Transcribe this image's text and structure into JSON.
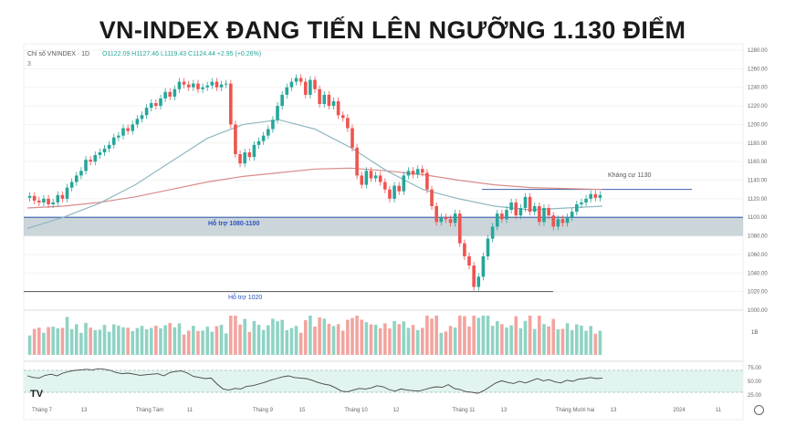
{
  "title": "VN-INDEX ĐANG TIẾN LÊN NGƯỠNG 1.130 ĐIỂM",
  "header": {
    "symbol": "Chỉ số VNINDEX · 1D",
    "ohlc": "O1122.09 H1127.46 L1119.43 C1124.44 +2.95 (+0.26%)",
    "sub": "3"
  },
  "annotations": {
    "support_1080_1100": "Hỗ trợ 1080-1100",
    "support_1020": "Hỗ trợ 1020",
    "resistance_1130": "Kháng cự 1130"
  },
  "logo": "TV",
  "icons": {
    "settings": "gear-icon"
  },
  "colors": {
    "up": "#26a69a",
    "down": "#ef5350",
    "ma_short": "#8fb8bf",
    "ma_long": "#d98b8b",
    "zone": "#b9c7ce",
    "volume_up": "#8fd3c4",
    "volume_down": "#f2a49f",
    "rsi": "#444444"
  },
  "chart_data": {
    "type": "candlestick",
    "y_axis": {
      "ticks": [
        "1280.00",
        "1260.00",
        "1240.00",
        "1220.00",
        "1200.00",
        "1180.00",
        "1160.00",
        "1140.00",
        "1120.00",
        "1100.00",
        "1080.00",
        "1060.00",
        "1040.00",
        "1020.00",
        "1000.00"
      ],
      "range": [
        1000,
        1280
      ]
    },
    "x_axis": {
      "ticks": [
        "Tháng 7",
        "13",
        "Tháng Tám",
        "11",
        "Tháng 9",
        "15",
        "Tháng 10",
        "12",
        "Tháng 11",
        "13",
        "Tháng Mười hai",
        "13",
        "2024",
        "11"
      ]
    },
    "closes": [
      1123,
      1118,
      1116,
      1120,
      1114,
      1116,
      1124,
      1120,
      1132,
      1138,
      1145,
      1150,
      1162,
      1160,
      1167,
      1170,
      1174,
      1178,
      1186,
      1188,
      1196,
      1193,
      1200,
      1206,
      1210,
      1218,
      1223,
      1220,
      1228,
      1235,
      1230,
      1238,
      1246,
      1243,
      1240,
      1244,
      1238,
      1240,
      1242,
      1246,
      1240,
      1243,
      1244,
      1200,
      1168,
      1158,
      1170,
      1165,
      1178,
      1182,
      1188,
      1195,
      1205,
      1220,
      1232,
      1240,
      1246,
      1250,
      1246,
      1232,
      1248,
      1238,
      1222,
      1232,
      1220,
      1225,
      1210,
      1207,
      1196,
      1175,
      1145,
      1135,
      1150,
      1142,
      1145,
      1138,
      1130,
      1120,
      1134,
      1128,
      1145,
      1150,
      1146,
      1152,
      1148,
      1130,
      1112,
      1095,
      1100,
      1098,
      1094,
      1104,
      1072,
      1058,
      1048,
      1025,
      1036,
      1058,
      1077,
      1090,
      1104,
      1098,
      1108,
      1116,
      1102,
      1110,
      1122,
      1106,
      1112,
      1095,
      1110,
      1102,
      1090,
      1098,
      1094,
      1100,
      1106,
      1114,
      1116,
      1120,
      1125,
      1121,
      1124
    ],
    "ma_short": [
      1088,
      1100,
      1115,
      1135,
      1160,
      1185,
      1200,
      1205,
      1195,
      1175,
      1150,
      1130,
      1120,
      1112,
      1108,
      1110,
      1112
    ],
    "ma_long": [
      1110,
      1112,
      1116,
      1122,
      1130,
      1138,
      1144,
      1148,
      1152,
      1153,
      1150,
      1146,
      1140,
      1135,
      1132,
      1131,
      1130
    ],
    "support_zone": [
      1080,
      1100
    ],
    "support_line": 1020,
    "resistance_line": 1130,
    "volume_axis": {
      "label": "1B"
    },
    "rsi": {
      "ticks": [
        "75.00",
        "50.00",
        "25.00"
      ],
      "range": [
        20,
        80
      ],
      "values": [
        60,
        57,
        56,
        61,
        63,
        60,
        65,
        68,
        70,
        71,
        72,
        71,
        73,
        72,
        70,
        66,
        64,
        65,
        63,
        61,
        62,
        63,
        64,
        60,
        66,
        68,
        69,
        65,
        59,
        57,
        55,
        56,
        45,
        36,
        34,
        37,
        36,
        41,
        42,
        45,
        48,
        52,
        55,
        58,
        60,
        57,
        56,
        55,
        52,
        48,
        45,
        43,
        38,
        32,
        31,
        34,
        37,
        36,
        38,
        42,
        40,
        35,
        32,
        36,
        34,
        33,
        32,
        35,
        38,
        40,
        39,
        44,
        37,
        35,
        31,
        30,
        28,
        33,
        40,
        47,
        51,
        48,
        46,
        50,
        47,
        51,
        55,
        51,
        53,
        49,
        47,
        52,
        50,
        54,
        55,
        57,
        55,
        56
      ]
    }
  }
}
